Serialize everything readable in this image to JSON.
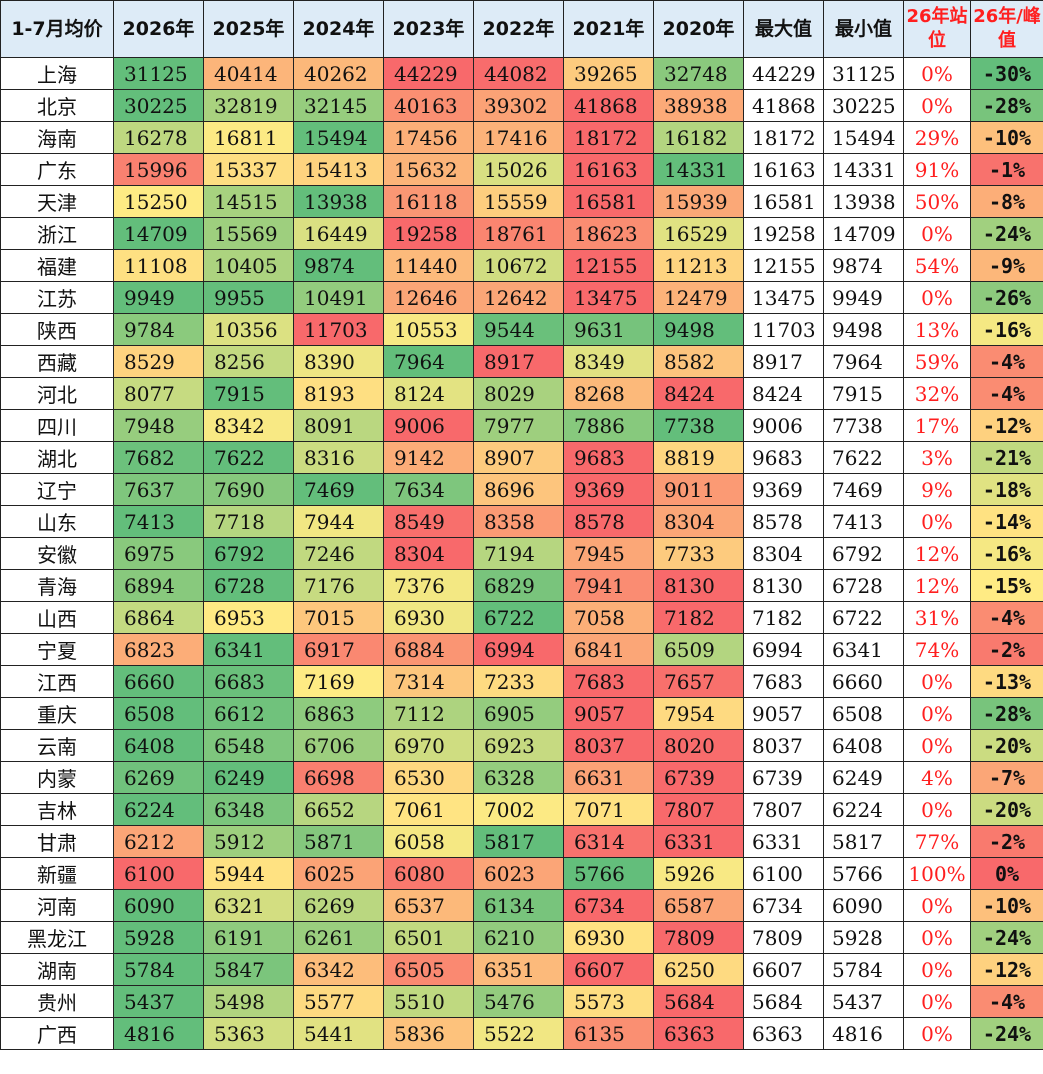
{
  "chart_data": {
    "type": "table",
    "columns": [
      "1-7月均价",
      "2026年",
      "2025年",
      "2024年",
      "2023年",
      "2022年",
      "2021年",
      "2020年",
      "最大值",
      "最小值",
      "26年站位",
      "26年/峰值"
    ],
    "heatmap_colors": {
      "low": "#63be7b",
      "mid": "#ffeb84",
      "high": "#f8696b"
    },
    "rows": [
      {
        "region": "上海",
        "years": [
          31125,
          40414,
          40262,
          44229,
          44082,
          39265,
          32748
        ],
        "max": "44229",
        "min": "31125",
        "pos": "0%",
        "ratio": "-30%"
      },
      {
        "region": "北京",
        "years": [
          30225,
          32819,
          32145,
          40163,
          39302,
          41868,
          38938
        ],
        "max": "41868",
        "min": "30225",
        "pos": "0%",
        "ratio": "-28%"
      },
      {
        "region": "海南",
        "years": [
          16278,
          16811,
          15494,
          17456,
          17416,
          18172,
          16182
        ],
        "max": "18172",
        "min": "15494",
        "pos": "29%",
        "ratio": "-10%"
      },
      {
        "region": "广东",
        "years": [
          15996,
          15337,
          15413,
          15632,
          15026,
          16163,
          14331
        ],
        "max": "16163",
        "min": "14331",
        "pos": "91%",
        "ratio": "-1%"
      },
      {
        "region": "天津",
        "years": [
          15250,
          14515,
          13938,
          16118,
          15559,
          16581,
          15939
        ],
        "max": "16581",
        "min": "13938",
        "pos": "50%",
        "ratio": "-8%"
      },
      {
        "region": "浙江",
        "years": [
          14709,
          15569,
          16449,
          19258,
          18761,
          18623,
          16529
        ],
        "max": "19258",
        "min": "14709",
        "pos": "0%",
        "ratio": "-24%"
      },
      {
        "region": "福建",
        "years": [
          11108,
          10405,
          9874,
          11440,
          10672,
          12155,
          11213
        ],
        "max": "12155",
        "min": "9874",
        "pos": "54%",
        "ratio": "-9%"
      },
      {
        "region": "江苏",
        "years": [
          9949,
          9955,
          10491,
          12646,
          12642,
          13475,
          12479
        ],
        "max": "13475",
        "min": "9949",
        "pos": "0%",
        "ratio": "-26%"
      },
      {
        "region": "陕西",
        "years": [
          9784,
          10356,
          11703,
          10553,
          9544,
          9631,
          9498
        ],
        "max": "11703",
        "min": "9498",
        "pos": "13%",
        "ratio": "-16%"
      },
      {
        "region": "西藏",
        "years": [
          8529,
          8256,
          8390,
          7964,
          8917,
          8349,
          8582
        ],
        "max": "8917",
        "min": "7964",
        "pos": "59%",
        "ratio": "-4%"
      },
      {
        "region": "河北",
        "years": [
          8077,
          7915,
          8193,
          8124,
          8029,
          8268,
          8424
        ],
        "max": "8424",
        "min": "7915",
        "pos": "32%",
        "ratio": "-4%"
      },
      {
        "region": "四川",
        "years": [
          7948,
          8342,
          8091,
          9006,
          7977,
          7886,
          7738
        ],
        "max": "9006",
        "min": "7738",
        "pos": "17%",
        "ratio": "-12%"
      },
      {
        "region": "湖北",
        "years": [
          7682,
          7622,
          8316,
          9142,
          8907,
          9683,
          8819
        ],
        "max": "9683",
        "min": "7622",
        "pos": "3%",
        "ratio": "-21%"
      },
      {
        "region": "辽宁",
        "years": [
          7637,
          7690,
          7469,
          7634,
          8696,
          9369,
          9011
        ],
        "max": "9369",
        "min": "7469",
        "pos": "9%",
        "ratio": "-18%"
      },
      {
        "region": "山东",
        "years": [
          7413,
          7718,
          7944,
          8549,
          8358,
          8578,
          8304
        ],
        "max": "8578",
        "min": "7413",
        "pos": "0%",
        "ratio": "-14%"
      },
      {
        "region": "安徽",
        "years": [
          6975,
          6792,
          7246,
          8304,
          7194,
          7945,
          7733
        ],
        "max": "8304",
        "min": "6792",
        "pos": "12%",
        "ratio": "-16%"
      },
      {
        "region": "青海",
        "years": [
          6894,
          6728,
          7176,
          7376,
          6829,
          7941,
          8130
        ],
        "max": "8130",
        "min": "6728",
        "pos": "12%",
        "ratio": "-15%"
      },
      {
        "region": "山西",
        "years": [
          6864,
          6953,
          7015,
          6930,
          6722,
          7058,
          7182
        ],
        "max": "7182",
        "min": "6722",
        "pos": "31%",
        "ratio": "-4%"
      },
      {
        "region": "宁夏",
        "years": [
          6823,
          6341,
          6917,
          6884,
          6994,
          6841,
          6509
        ],
        "max": "6994",
        "min": "6341",
        "pos": "74%",
        "ratio": "-2%"
      },
      {
        "region": "江西",
        "years": [
          6660,
          6683,
          7169,
          7314,
          7233,
          7683,
          7657
        ],
        "max": "7683",
        "min": "6660",
        "pos": "0%",
        "ratio": "-13%"
      },
      {
        "region": "重庆",
        "years": [
          6508,
          6612,
          6863,
          7112,
          6905,
          9057,
          7954
        ],
        "max": "9057",
        "min": "6508",
        "pos": "0%",
        "ratio": "-28%"
      },
      {
        "region": "云南",
        "years": [
          6408,
          6548,
          6706,
          6970,
          6923,
          8037,
          8020
        ],
        "max": "8037",
        "min": "6408",
        "pos": "0%",
        "ratio": "-20%"
      },
      {
        "region": "内蒙",
        "years": [
          6269,
          6249,
          6698,
          6530,
          6328,
          6631,
          6739
        ],
        "max": "6739",
        "min": "6249",
        "pos": "4%",
        "ratio": "-7%"
      },
      {
        "region": "吉林",
        "years": [
          6224,
          6348,
          6652,
          7061,
          7002,
          7071,
          7807
        ],
        "max": "7807",
        "min": "6224",
        "pos": "0%",
        "ratio": "-20%"
      },
      {
        "region": "甘肃",
        "years": [
          6212,
          5912,
          5871,
          6058,
          5817,
          6314,
          6331
        ],
        "max": "6331",
        "min": "5817",
        "pos": "77%",
        "ratio": "-2%"
      },
      {
        "region": "新疆",
        "years": [
          6100,
          5944,
          6025,
          6080,
          6023,
          5766,
          5926
        ],
        "max": "6100",
        "min": "5766",
        "pos": "100%",
        "ratio": "0%"
      },
      {
        "region": "河南",
        "years": [
          6090,
          6321,
          6269,
          6537,
          6134,
          6734,
          6587
        ],
        "max": "6734",
        "min": "6090",
        "pos": "0%",
        "ratio": "-10%"
      },
      {
        "region": "黑龙江",
        "years": [
          5928,
          6191,
          6261,
          6501,
          6210,
          6930,
          7809
        ],
        "max": "7809",
        "min": "5928",
        "pos": "0%",
        "ratio": "-24%"
      },
      {
        "region": "湖南",
        "years": [
          5784,
          5847,
          6342,
          6505,
          6351,
          6607,
          6250
        ],
        "max": "6607",
        "min": "5784",
        "pos": "0%",
        "ratio": "-12%"
      },
      {
        "region": "贵州",
        "years": [
          5437,
          5498,
          5577,
          5510,
          5476,
          5573,
          5684
        ],
        "max": "5684",
        "min": "5437",
        "pos": "0%",
        "ratio": "-4%"
      },
      {
        "region": "广西",
        "years": [
          4816,
          5363,
          5441,
          5836,
          5522,
          6135,
          6363
        ],
        "max": "6363",
        "min": "4816",
        "pos": "0%",
        "ratio": "-24%"
      }
    ]
  }
}
